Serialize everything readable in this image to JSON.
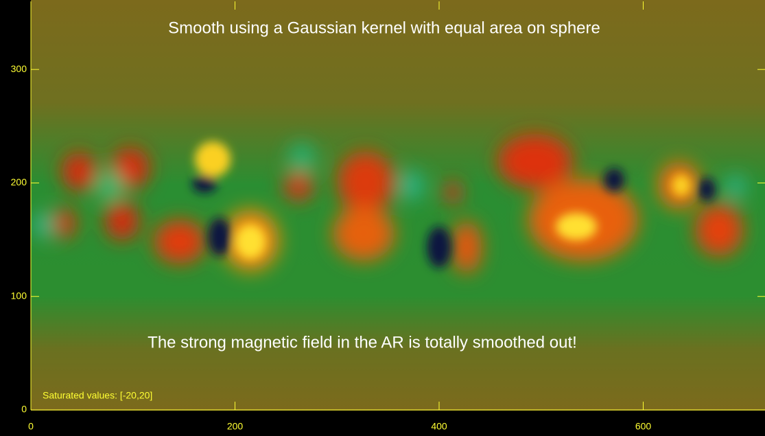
{
  "chart_data": {
    "type": "heatmap",
    "title": "Smooth using a Gaussian kernel  with equal area on sphere",
    "annotation": "The strong magnetic field in the AR is totally smoothed out!",
    "note": "Saturated values: [-20,20]",
    "xlim": [
      0,
      720
    ],
    "xticks": [
      0,
      200,
      400,
      600
    ],
    "ylim": [
      0,
      360
    ],
    "yticks": [
      0,
      100,
      200,
      300
    ],
    "axis_color": "#ffff33"
  }
}
